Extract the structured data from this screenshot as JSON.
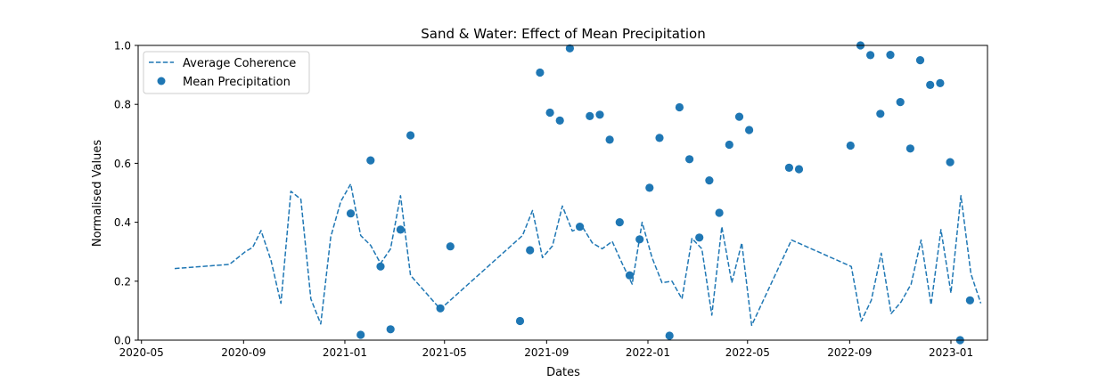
{
  "chart_data": {
    "type": "line",
    "title": "Sand & Water: Effect of Mean Precipitation",
    "xlabel": "Dates",
    "ylabel": "Normalised Values",
    "xlim": [
      "2020-04-27",
      "2023-02-14"
    ],
    "ylim": [
      0,
      1
    ],
    "x_ticks": [
      "2020-05",
      "2020-09",
      "2021-01",
      "2021-05",
      "2021-09",
      "2022-01",
      "2022-05",
      "2022-09",
      "2023-01"
    ],
    "y_ticks": [
      "0.0",
      "0.2",
      "0.4",
      "0.6",
      "0.8",
      "1.0"
    ],
    "legend": "upper-left",
    "grid": false,
    "color": "#1f77b4",
    "series": [
      {
        "name": "Average Coherence",
        "style": "dashed-line",
        "points": [
          [
            "2020-06-10",
            0.243
          ],
          [
            "2020-08-15",
            0.257
          ],
          [
            "2020-09-03",
            0.3
          ],
          [
            "2020-09-12",
            0.315
          ],
          [
            "2020-09-22",
            0.372
          ],
          [
            "2020-10-04",
            0.27
          ],
          [
            "2020-10-16",
            0.125
          ],
          [
            "2020-10-28",
            0.505
          ],
          [
            "2020-11-09",
            0.478
          ],
          [
            "2020-11-21",
            0.14
          ],
          [
            "2020-12-03",
            0.055
          ],
          [
            "2020-12-15",
            0.35
          ],
          [
            "2020-12-27",
            0.47
          ],
          [
            "2021-01-08",
            0.53
          ],
          [
            "2021-01-20",
            0.355
          ],
          [
            "2021-02-01",
            0.322
          ],
          [
            "2021-02-13",
            0.26
          ],
          [
            "2021-02-25",
            0.31
          ],
          [
            "2021-03-09",
            0.49
          ],
          [
            "2021-03-21",
            0.22
          ],
          [
            "2021-04-26",
            0.105
          ],
          [
            "2021-08-03",
            0.355
          ],
          [
            "2021-08-15",
            0.44
          ],
          [
            "2021-08-27",
            0.28
          ],
          [
            "2021-09-08",
            0.32
          ],
          [
            "2021-09-20",
            0.455
          ],
          [
            "2021-10-02",
            0.37
          ],
          [
            "2021-10-14",
            0.385
          ],
          [
            "2021-10-26",
            0.33
          ],
          [
            "2021-11-07",
            0.31
          ],
          [
            "2021-11-19",
            0.335
          ],
          [
            "2021-12-01",
            0.26
          ],
          [
            "2021-12-13",
            0.19
          ],
          [
            "2021-12-25",
            0.4
          ],
          [
            "2022-01-06",
            0.28
          ],
          [
            "2022-01-18",
            0.195
          ],
          [
            "2022-01-30",
            0.2
          ],
          [
            "2022-02-11",
            0.14
          ],
          [
            "2022-02-23",
            0.345
          ],
          [
            "2022-03-07",
            0.31
          ],
          [
            "2022-03-19",
            0.085
          ],
          [
            "2022-03-31",
            0.385
          ],
          [
            "2022-04-12",
            0.195
          ],
          [
            "2022-04-24",
            0.33
          ],
          [
            "2022-05-06",
            0.05
          ],
          [
            "2022-06-23",
            0.34
          ],
          [
            "2022-09-03",
            0.25
          ],
          [
            "2022-09-15",
            0.065
          ],
          [
            "2022-09-27",
            0.135
          ],
          [
            "2022-10-09",
            0.295
          ],
          [
            "2022-10-21",
            0.09
          ],
          [
            "2022-11-02",
            0.13
          ],
          [
            "2022-11-14",
            0.19
          ],
          [
            "2022-11-26",
            0.34
          ],
          [
            "2022-12-08",
            0.12
          ],
          [
            "2022-12-20",
            0.375
          ],
          [
            "2023-01-01",
            0.16
          ],
          [
            "2023-01-13",
            0.49
          ],
          [
            "2023-01-25",
            0.225
          ],
          [
            "2023-02-06",
            0.125
          ]
        ]
      },
      {
        "name": "Mean Precipitation",
        "style": "scatter",
        "points": [
          [
            "2021-01-08",
            0.43
          ],
          [
            "2021-01-20",
            0.018
          ],
          [
            "2021-02-01",
            0.61
          ],
          [
            "2021-02-13",
            0.25
          ],
          [
            "2021-02-25",
            0.037
          ],
          [
            "2021-03-09",
            0.375
          ],
          [
            "2021-03-21",
            0.695
          ],
          [
            "2021-04-26",
            0.108
          ],
          [
            "2021-05-08",
            0.318
          ],
          [
            "2021-07-31",
            0.065
          ],
          [
            "2021-08-12",
            0.305
          ],
          [
            "2021-08-24",
            0.908
          ],
          [
            "2021-09-05",
            0.772
          ],
          [
            "2021-09-17",
            0.745
          ],
          [
            "2021-09-29",
            0.99
          ],
          [
            "2021-10-11",
            0.385
          ],
          [
            "2021-10-23",
            0.76
          ],
          [
            "2021-11-04",
            0.765
          ],
          [
            "2021-11-16",
            0.68
          ],
          [
            "2021-11-28",
            0.4
          ],
          [
            "2021-12-10",
            0.22
          ],
          [
            "2021-12-22",
            0.342
          ],
          [
            "2022-01-03",
            0.517
          ],
          [
            "2022-01-15",
            0.686
          ],
          [
            "2022-01-27",
            0.015
          ],
          [
            "2022-02-08",
            0.79
          ],
          [
            "2022-02-20",
            0.614
          ],
          [
            "2022-03-04",
            0.348
          ],
          [
            "2022-03-16",
            0.542
          ],
          [
            "2022-03-28",
            0.432
          ],
          [
            "2022-04-09",
            0.663
          ],
          [
            "2022-04-21",
            0.758
          ],
          [
            "2022-05-03",
            0.713
          ],
          [
            "2022-06-20",
            0.585
          ],
          [
            "2022-07-02",
            0.58
          ],
          [
            "2022-09-02",
            0.66
          ],
          [
            "2022-09-14",
            1.0
          ],
          [
            "2022-09-26",
            0.967
          ],
          [
            "2022-10-08",
            0.768
          ],
          [
            "2022-10-20",
            0.968
          ],
          [
            "2022-11-01",
            0.808
          ],
          [
            "2022-11-13",
            0.65
          ],
          [
            "2022-11-25",
            0.95
          ],
          [
            "2022-12-07",
            0.866
          ],
          [
            "2022-12-19",
            0.872
          ],
          [
            "2022-12-31",
            0.604
          ],
          [
            "2023-01-12",
            0.0
          ],
          [
            "2023-01-24",
            0.135
          ]
        ]
      }
    ]
  }
}
